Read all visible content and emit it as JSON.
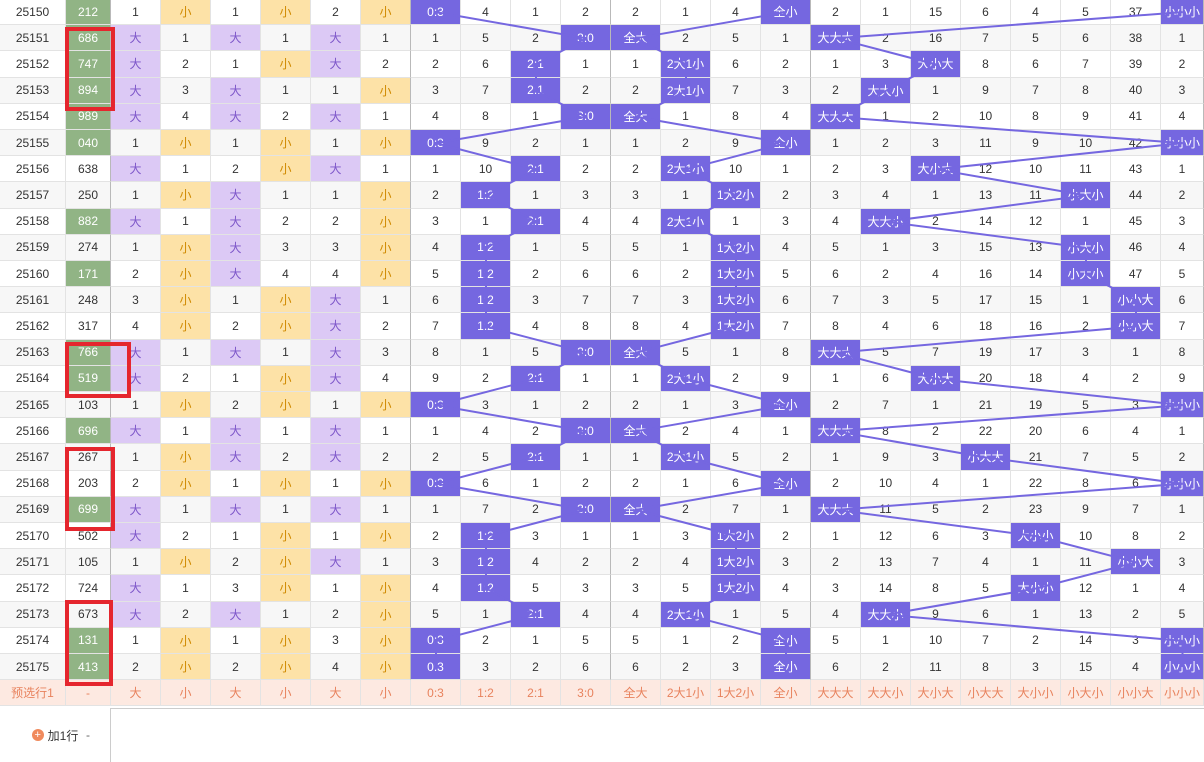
{
  "rows": [
    [
      "25150",
      "212",
      "1",
      "小",
      "1",
      "小",
      "2",
      "小",
      "0:3",
      "4",
      "1",
      "2",
      "2",
      "1",
      "4",
      "全小",
      "2",
      "1",
      "15",
      "6",
      "4",
      "5",
      "37",
      "小小小"
    ],
    [
      "25151",
      "686",
      "大",
      "1",
      "大",
      "1",
      "大",
      "1",
      "1",
      "5",
      "2",
      "3:0",
      "全大",
      "2",
      "5",
      "1",
      "大大大",
      "2",
      "16",
      "7",
      "5",
      "6",
      "38",
      "1"
    ],
    [
      "25152",
      "747",
      "大",
      "2",
      "1",
      "小",
      "大",
      "2",
      "2",
      "6",
      "2:1",
      "1",
      "1",
      "2大1小",
      "6",
      "2",
      "1",
      "3",
      "大小大",
      "8",
      "6",
      "7",
      "39",
      "2"
    ],
    [
      "25153",
      "894",
      "大",
      "3",
      "大",
      "1",
      "1",
      "小",
      "3",
      "7",
      "2:1",
      "2",
      "2",
      "2大1小",
      "7",
      "3",
      "2",
      "大大小",
      "1",
      "9",
      "7",
      "8",
      "40",
      "3"
    ],
    [
      "25154",
      "989",
      "大",
      "4",
      "大",
      "2",
      "大",
      "1",
      "4",
      "8",
      "1",
      "3:0",
      "全大",
      "1",
      "8",
      "4",
      "大大大",
      "1",
      "2",
      "10",
      "8",
      "9",
      "41",
      "4"
    ],
    [
      "25155",
      "040",
      "1",
      "小",
      "1",
      "小",
      "1",
      "小",
      "0:3",
      "9",
      "2",
      "1",
      "1",
      "2",
      "9",
      "全小",
      "1",
      "2",
      "3",
      "11",
      "9",
      "10",
      "42",
      "小小小"
    ],
    [
      "25156",
      "638",
      "大",
      "1",
      "2",
      "小",
      "大",
      "1",
      "1",
      "10",
      "2:1",
      "2",
      "2",
      "2大1小",
      "10",
      "1",
      "2",
      "3",
      "大小大",
      "12",
      "10",
      "11",
      "43",
      "1"
    ],
    [
      "25157",
      "250",
      "1",
      "小",
      "大",
      "1",
      "1",
      "小",
      "2",
      "1:2",
      "1",
      "3",
      "3",
      "1",
      "1大2小",
      "2",
      "3",
      "4",
      "1",
      "13",
      "11",
      "小大小",
      "44",
      "2"
    ],
    [
      "25158",
      "882",
      "大",
      "1",
      "大",
      "2",
      "2",
      "小",
      "3",
      "1",
      "2:1",
      "4",
      "4",
      "2大1小",
      "1",
      "3",
      "4",
      "大大小",
      "2",
      "14",
      "12",
      "1",
      "45",
      "3"
    ],
    [
      "25159",
      "274",
      "1",
      "小",
      "大",
      "3",
      "3",
      "小",
      "4",
      "1:2",
      "1",
      "5",
      "5",
      "1",
      "1大2小",
      "4",
      "5",
      "1",
      "3",
      "15",
      "13",
      "小大小",
      "46",
      "4"
    ],
    [
      "25160",
      "171",
      "2",
      "小",
      "大",
      "4",
      "4",
      "小",
      "5",
      "1:2",
      "2",
      "6",
      "6",
      "2",
      "1大2小",
      "5",
      "6",
      "2",
      "4",
      "16",
      "14",
      "小大小",
      "47",
      "5"
    ],
    [
      "25161",
      "248",
      "3",
      "小",
      "1",
      "小",
      "大",
      "1",
      "6",
      "1:2",
      "3",
      "7",
      "7",
      "3",
      "1大2小",
      "6",
      "7",
      "3",
      "5",
      "17",
      "15",
      "1",
      "小小大",
      "6"
    ],
    [
      "25162",
      "317",
      "4",
      "小",
      "2",
      "小",
      "大",
      "2",
      "7",
      "1:2",
      "4",
      "8",
      "8",
      "4",
      "1大2小",
      "7",
      "8",
      "4",
      "6",
      "18",
      "16",
      "2",
      "小小大",
      "7"
    ],
    [
      "25163",
      "766",
      "大",
      "1",
      "大",
      "1",
      "大",
      "3",
      "8",
      "1",
      "5",
      "3:0",
      "全大",
      "5",
      "1",
      "8",
      "大大大",
      "5",
      "7",
      "19",
      "17",
      "3",
      "1",
      "8"
    ],
    [
      "25164",
      "519",
      "大",
      "2",
      "1",
      "小",
      "大",
      "4",
      "9",
      "2",
      "2:1",
      "1",
      "1",
      "2大1小",
      "2",
      "9",
      "1",
      "6",
      "大小大",
      "20",
      "18",
      "4",
      "2",
      "9"
    ],
    [
      "25165",
      "103",
      "1",
      "小",
      "2",
      "小",
      "1",
      "小",
      "0:3",
      "3",
      "1",
      "2",
      "2",
      "1",
      "3",
      "全小",
      "2",
      "7",
      "1",
      "21",
      "19",
      "5",
      "3",
      "小小小"
    ],
    [
      "25166",
      "696",
      "大",
      "1",
      "大",
      "1",
      "大",
      "1",
      "1",
      "4",
      "2",
      "3:0",
      "全大",
      "2",
      "4",
      "1",
      "大大大",
      "8",
      "2",
      "22",
      "20",
      "6",
      "4",
      "1"
    ],
    [
      "25167",
      "267",
      "1",
      "小",
      "大",
      "2",
      "大",
      "2",
      "2",
      "5",
      "2:1",
      "1",
      "1",
      "2大1小",
      "5",
      "2",
      "1",
      "9",
      "3",
      "小大大",
      "21",
      "7",
      "5",
      "2"
    ],
    [
      "25168",
      "203",
      "2",
      "小",
      "1",
      "小",
      "1",
      "小",
      "0:3",
      "6",
      "1",
      "2",
      "2",
      "1",
      "6",
      "全小",
      "2",
      "10",
      "4",
      "1",
      "22",
      "8",
      "6",
      "小小小"
    ],
    [
      "25169",
      "699",
      "大",
      "1",
      "大",
      "1",
      "大",
      "1",
      "1",
      "7",
      "2",
      "3:0",
      "全大",
      "2",
      "7",
      "1",
      "大大大",
      "11",
      "5",
      "2",
      "23",
      "9",
      "7",
      "1"
    ],
    [
      "25170",
      "502",
      "大",
      "2",
      "1",
      "小",
      "1",
      "小",
      "2",
      "1:2",
      "3",
      "1",
      "1",
      "3",
      "1大2小",
      "2",
      "1",
      "12",
      "6",
      "3",
      "大小小",
      "10",
      "8",
      "2"
    ],
    [
      "25171",
      "105",
      "1",
      "小",
      "2",
      "小",
      "大",
      "1",
      "3",
      "1:2",
      "4",
      "2",
      "2",
      "4",
      "1大2小",
      "3",
      "2",
      "13",
      "7",
      "4",
      "1",
      "11",
      "小小大",
      "3"
    ],
    [
      "25172",
      "724",
      "大",
      "1",
      "3",
      "小",
      "1",
      "小",
      "4",
      "1:2",
      "5",
      "3",
      "3",
      "5",
      "1大2小",
      "4",
      "3",
      "14",
      "8",
      "5",
      "大小小",
      "12",
      "1",
      "4"
    ],
    [
      "25173",
      "673",
      "大",
      "2",
      "大",
      "1",
      "2",
      "小",
      "5",
      "1",
      "2:1",
      "4",
      "4",
      "2大1小",
      "1",
      "5",
      "4",
      "大大小",
      "9",
      "6",
      "1",
      "13",
      "2",
      "5"
    ],
    [
      "25174",
      "131",
      "1",
      "小",
      "1",
      "小",
      "3",
      "小",
      "0:3",
      "2",
      "1",
      "5",
      "5",
      "1",
      "2",
      "全小",
      "5",
      "1",
      "10",
      "7",
      "2",
      "14",
      "3",
      "小小小"
    ],
    [
      "25175",
      "413",
      "2",
      "小",
      "2",
      "小",
      "4",
      "小",
      "0:3",
      "3",
      "2",
      "6",
      "6",
      "2",
      "3",
      "全小",
      "6",
      "2",
      "11",
      "8",
      "3",
      "15",
      "4",
      "小小小"
    ]
  ],
  "hot_numbers": [
    "212",
    "686",
    "747",
    "894",
    "989",
    "040",
    "882",
    "171",
    "766",
    "519",
    "696",
    "699",
    "131",
    "413"
  ],
  "preselect_row": [
    "预选行1",
    "-",
    "大",
    "小",
    "大",
    "小",
    "大",
    "小",
    "0:3",
    "1:2",
    "2:1",
    "3:0",
    "全大",
    "2大1小",
    "1大2小",
    "全小",
    "大大大",
    "大大小",
    "大小大",
    "小大大",
    "大小小",
    "小大小",
    "小小大",
    "小小小"
  ],
  "add_row_label": "加1行",
  "add_row_dash": "-",
  "colors": {
    "hot": "#91b485",
    "big": "#dcc9f5",
    "small": "#fde2a7",
    "mark": "#7567e0",
    "red_box": "#e5262e"
  }
}
